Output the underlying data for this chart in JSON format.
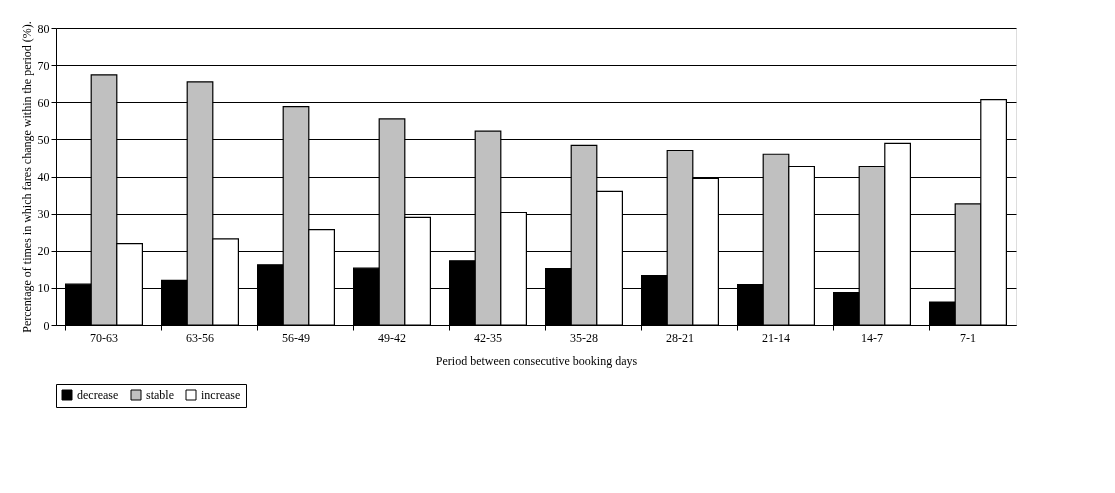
{
  "chart_data": {
    "type": "bar",
    "xlabel": "Period between consecutive booking days",
    "ylabel": "Percentage of times in which fares change within the period (%).",
    "categories": [
      "70-63",
      "63-56",
      "56-49",
      "49-42",
      "42-35",
      "35-28",
      "28-21",
      "21-14",
      "14-7",
      "7-1"
    ],
    "series": [
      {
        "name": "decrease",
        "color": "#000000",
        "values": [
          11,
          12,
          16.2,
          15.3,
          17.3,
          15.2,
          13.3,
          10.9,
          8.7,
          6.2
        ]
      },
      {
        "name": "stable",
        "color": "#c0c0c0",
        "values": [
          67.4,
          65.5,
          58.8,
          55.5,
          52.2,
          48.4,
          47.0,
          46.0,
          42.7,
          32.6
        ]
      },
      {
        "name": "increase",
        "color": "#ffffff",
        "values": [
          21.9,
          23.2,
          25.7,
          29.0,
          30.3,
          36.0,
          39.5,
          42.7,
          48.9,
          60.7
        ]
      }
    ],
    "ylim": [
      0,
      80
    ],
    "yticks": [
      0,
      10,
      20,
      30,
      40,
      50,
      60,
      70,
      80
    ],
    "grid": "y",
    "legend": "bottom"
  }
}
